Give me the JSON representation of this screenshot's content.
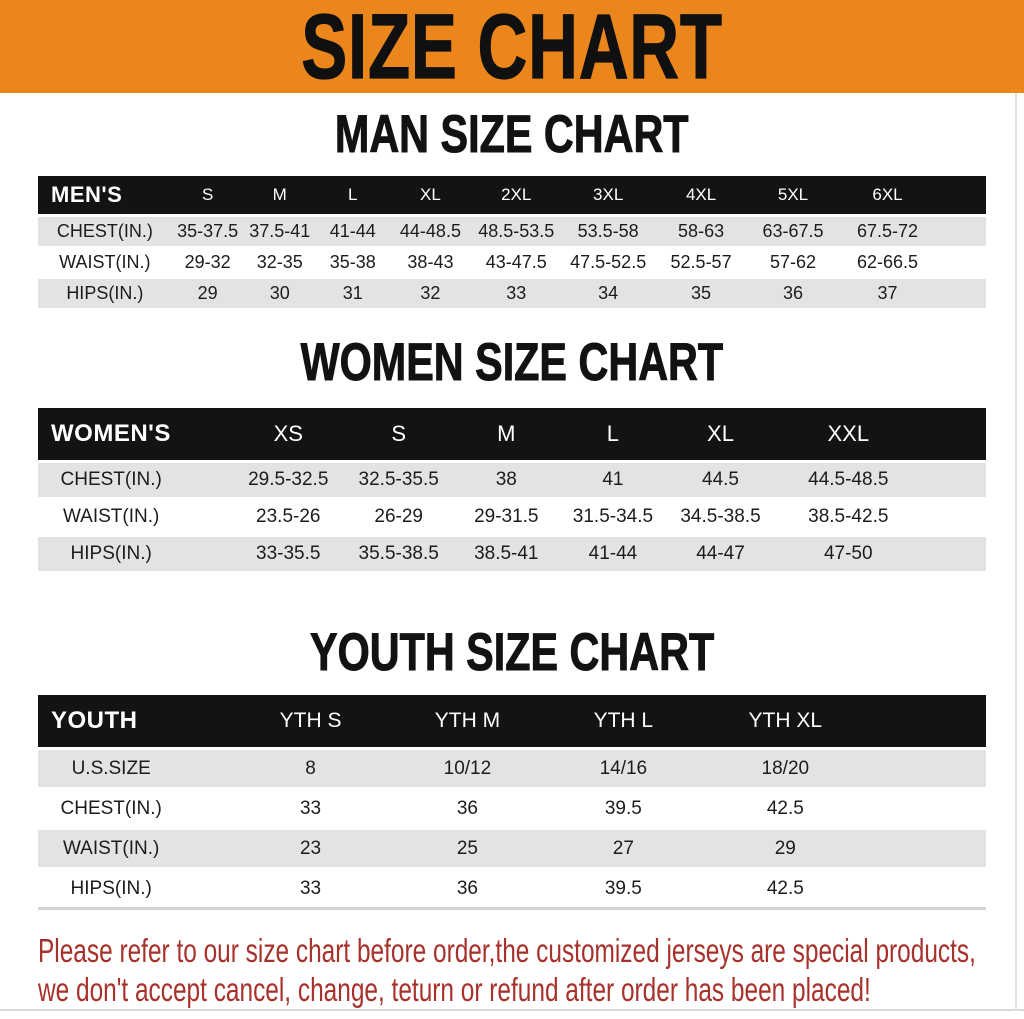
{
  "banner": {
    "title": "SIZE CHART",
    "bg_color": "#EB861D"
  },
  "sections": [
    {
      "id": "men",
      "title": "MAN SIZE CHART",
      "corner_label": "MEN'S",
      "columns": [
        "S",
        "M",
        "L",
        "XL",
        "2XL",
        "3XL",
        "4XL",
        "5XL",
        "6XL"
      ],
      "rows": [
        {
          "label": "CHEST(IN.)",
          "values": [
            "35-37.5",
            "37.5-41",
            "41-44",
            "44-48.5",
            "48.5-53.5",
            "53.5-58",
            "58-63",
            "63-67.5",
            "67.5-72"
          ]
        },
        {
          "label": "WAIST(IN.)",
          "values": [
            "29-32",
            "32-35",
            "35-38",
            "38-43",
            "43-47.5",
            "47.5-52.5",
            "52.5-57",
            "57-62",
            "62-66.5"
          ]
        },
        {
          "label": "HIPS(IN.)",
          "values": [
            "29",
            "30",
            "31",
            "32",
            "33",
            "34",
            "35",
            "36",
            "37"
          ]
        }
      ]
    },
    {
      "id": "women",
      "title": "WOMEN SIZE CHART",
      "corner_label": "WOMEN'S",
      "columns": [
        "XS",
        "S",
        "M",
        "L",
        "XL",
        "XXL"
      ],
      "rows": [
        {
          "label": "CHEST(IN.)",
          "values": [
            "29.5-32.5",
            "32.5-35.5",
            "38",
            "41",
            "44.5",
            "44.5-48.5"
          ]
        },
        {
          "label": "WAIST(IN.)",
          "values": [
            "23.5-26",
            "26-29",
            "29-31.5",
            "31.5-34.5",
            "34.5-38.5",
            "38.5-42.5"
          ]
        },
        {
          "label": "HIPS(IN.)",
          "values": [
            "33-35.5",
            "35.5-38.5",
            "38.5-41",
            "41-44",
            "44-47",
            "47-50"
          ]
        }
      ]
    },
    {
      "id": "youth",
      "title": "YOUTH SIZE CHART",
      "corner_label": "YOUTH",
      "columns": [
        "YTH S",
        "YTH M",
        "YTH L",
        "YTH XL"
      ],
      "rows": [
        {
          "label": "U.S.SIZE",
          "values": [
            "8",
            "10/12",
            "14/16",
            "18/20"
          ]
        },
        {
          "label": "CHEST(IN.)",
          "values": [
            "33",
            "36",
            "39.5",
            "42.5"
          ]
        },
        {
          "label": "WAIST(IN.)",
          "values": [
            "23",
            "25",
            "27",
            "29"
          ]
        },
        {
          "label": "HIPS(IN.)",
          "values": [
            "33",
            "36",
            "39.5",
            "42.5"
          ]
        }
      ]
    }
  ],
  "disclaimer": {
    "line1": "Please refer to our size chart before order,the customized jerseys are special products,",
    "line2": "we don't accept cancel, change, teturn or refund after order has been placed!",
    "color": "#A8322B"
  }
}
